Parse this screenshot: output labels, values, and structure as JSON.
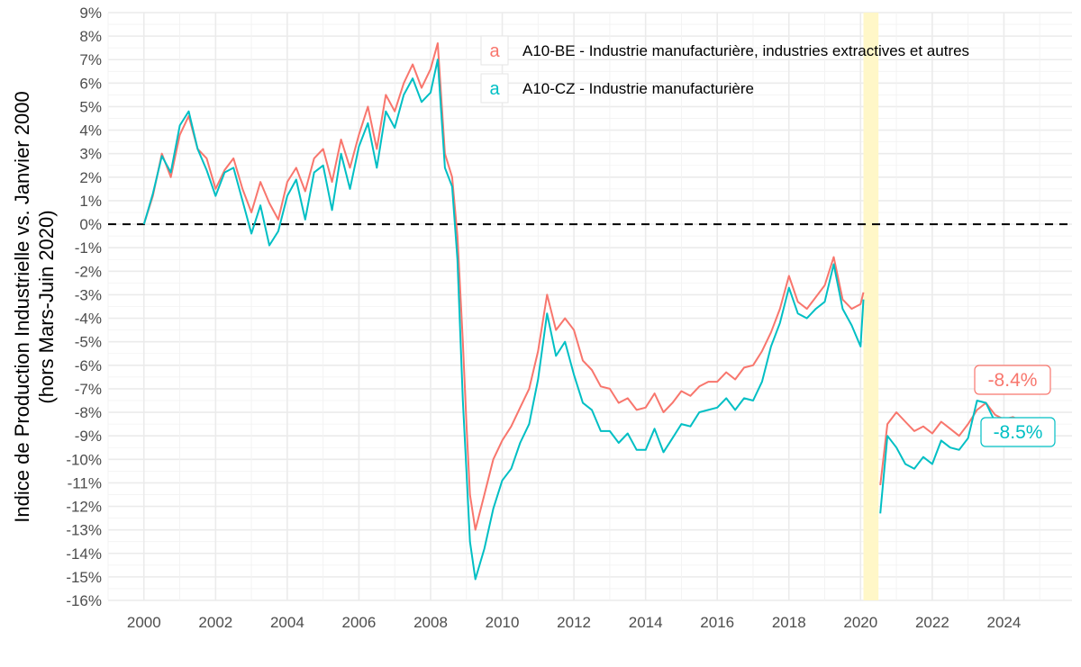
{
  "chart_data": {
    "type": "line",
    "title": "",
    "xlabel": "",
    "ylabel": "Indice de Production Industrielle vs. Janvier 2000",
    "ylabel_sub": "(hors Mars-Juin 2020)",
    "x_ticks": [
      "2000",
      "2002",
      "2004",
      "2006",
      "2008",
      "2010",
      "2012",
      "2014",
      "2016",
      "2018",
      "2020",
      "2022",
      "2024"
    ],
    "y_ticks": [
      "9%",
      "8%",
      "7%",
      "6%",
      "5%",
      "4%",
      "3%",
      "2%",
      "1%",
      "0%",
      "-1%",
      "-2%",
      "-3%",
      "-4%",
      "-5%",
      "-6%",
      "-7%",
      "-8%",
      "-9%",
      "-10%",
      "-11%",
      "-12%",
      "-13%",
      "-14%",
      "-15%",
      "-16%"
    ],
    "xlim": [
      1999.0,
      2025.9
    ],
    "ylim": [
      -16,
      9
    ],
    "reference_line": 0,
    "excluded_period": {
      "start": 2020.08,
      "end": 2020.5,
      "color": "#FFF7C8"
    },
    "legend_key_glyph": "a",
    "series": [
      {
        "name": "A10-BE - Industrie manufacturière, industries extractives et autres",
        "color": "#F8766D",
        "end_label": "-8.4%",
        "points": [
          [
            2000.0,
            0.0
          ],
          [
            2000.25,
            1.2
          ],
          [
            2000.5,
            3.0
          ],
          [
            2000.75,
            2.0
          ],
          [
            2001.0,
            3.8
          ],
          [
            2001.25,
            4.6
          ],
          [
            2001.5,
            3.2
          ],
          [
            2001.75,
            2.8
          ],
          [
            2002.0,
            1.5
          ],
          [
            2002.25,
            2.3
          ],
          [
            2002.5,
            2.8
          ],
          [
            2002.75,
            1.5
          ],
          [
            2003.0,
            0.5
          ],
          [
            2003.25,
            1.8
          ],
          [
            2003.5,
            0.9
          ],
          [
            2003.75,
            0.2
          ],
          [
            2004.0,
            1.8
          ],
          [
            2004.25,
            2.4
          ],
          [
            2004.5,
            1.4
          ],
          [
            2004.75,
            2.8
          ],
          [
            2005.0,
            3.2
          ],
          [
            2005.25,
            1.8
          ],
          [
            2005.5,
            3.6
          ],
          [
            2005.75,
            2.4
          ],
          [
            2006.0,
            3.8
          ],
          [
            2006.25,
            5.0
          ],
          [
            2006.5,
            3.2
          ],
          [
            2006.75,
            5.5
          ],
          [
            2007.0,
            4.8
          ],
          [
            2007.25,
            6.0
          ],
          [
            2007.5,
            6.8
          ],
          [
            2007.75,
            5.8
          ],
          [
            2008.0,
            6.6
          ],
          [
            2008.2,
            7.7
          ],
          [
            2008.4,
            3.0
          ],
          [
            2008.6,
            2.0
          ],
          [
            2008.75,
            -0.5
          ],
          [
            2008.9,
            -5.0
          ],
          [
            2009.0,
            -8.5
          ],
          [
            2009.1,
            -11.5
          ],
          [
            2009.25,
            -13.0
          ],
          [
            2009.5,
            -11.5
          ],
          [
            2009.75,
            -10.0
          ],
          [
            2010.0,
            -9.2
          ],
          [
            2010.25,
            -8.6
          ],
          [
            2010.5,
            -7.8
          ],
          [
            2010.75,
            -7.0
          ],
          [
            2011.0,
            -5.4
          ],
          [
            2011.25,
            -3.0
          ],
          [
            2011.5,
            -4.5
          ],
          [
            2011.75,
            -4.0
          ],
          [
            2012.0,
            -4.5
          ],
          [
            2012.25,
            -5.8
          ],
          [
            2012.5,
            -6.2
          ],
          [
            2012.75,
            -6.9
          ],
          [
            2013.0,
            -7.0
          ],
          [
            2013.25,
            -7.6
          ],
          [
            2013.5,
            -7.4
          ],
          [
            2013.75,
            -7.9
          ],
          [
            2014.0,
            -7.8
          ],
          [
            2014.25,
            -7.2
          ],
          [
            2014.5,
            -8.0
          ],
          [
            2014.75,
            -7.6
          ],
          [
            2015.0,
            -7.1
          ],
          [
            2015.25,
            -7.3
          ],
          [
            2015.5,
            -6.9
          ],
          [
            2015.75,
            -6.7
          ],
          [
            2016.0,
            -6.7
          ],
          [
            2016.25,
            -6.3
          ],
          [
            2016.5,
            -6.6
          ],
          [
            2016.75,
            -6.1
          ],
          [
            2017.0,
            -6.0
          ],
          [
            2017.25,
            -5.4
          ],
          [
            2017.5,
            -4.6
          ],
          [
            2017.75,
            -3.6
          ],
          [
            2018.0,
            -2.2
          ],
          [
            2018.25,
            -3.3
          ],
          [
            2018.5,
            -3.6
          ],
          [
            2018.75,
            -3.1
          ],
          [
            2019.0,
            -2.6
          ],
          [
            2019.25,
            -1.4
          ],
          [
            2019.5,
            -3.2
          ],
          [
            2019.75,
            -3.6
          ],
          [
            2020.0,
            -3.4
          ],
          [
            2020.08,
            -2.9
          ],
          [
            2020.55,
            -11.1
          ],
          [
            2020.75,
            -8.5
          ],
          [
            2021.0,
            -8.0
          ],
          [
            2021.25,
            -8.4
          ],
          [
            2021.5,
            -8.8
          ],
          [
            2021.75,
            -8.6
          ],
          [
            2022.0,
            -8.9
          ],
          [
            2022.25,
            -8.4
          ],
          [
            2022.5,
            -8.7
          ],
          [
            2022.75,
            -9.0
          ],
          [
            2023.0,
            -8.5
          ],
          [
            2023.25,
            -7.9
          ],
          [
            2023.5,
            -7.6
          ],
          [
            2023.75,
            -8.1
          ],
          [
            2024.0,
            -8.3
          ],
          [
            2024.25,
            -8.2
          ],
          [
            2024.5,
            -8.4
          ]
        ]
      },
      {
        "name": "A10-CZ - Industrie manufacturière",
        "color": "#00BFC4",
        "end_label": "-8.5%",
        "points": [
          [
            2000.0,
            0.0
          ],
          [
            2000.25,
            1.3
          ],
          [
            2000.5,
            2.9
          ],
          [
            2000.75,
            2.2
          ],
          [
            2001.0,
            4.2
          ],
          [
            2001.25,
            4.8
          ],
          [
            2001.5,
            3.2
          ],
          [
            2001.75,
            2.3
          ],
          [
            2002.0,
            1.2
          ],
          [
            2002.25,
            2.2
          ],
          [
            2002.5,
            2.4
          ],
          [
            2002.75,
            1.0
          ],
          [
            2003.0,
            -0.4
          ],
          [
            2003.25,
            0.8
          ],
          [
            2003.5,
            -0.9
          ],
          [
            2003.75,
            -0.3
          ],
          [
            2004.0,
            1.2
          ],
          [
            2004.25,
            1.9
          ],
          [
            2004.5,
            0.2
          ],
          [
            2004.75,
            2.2
          ],
          [
            2005.0,
            2.5
          ],
          [
            2005.25,
            0.6
          ],
          [
            2005.5,
            3.0
          ],
          [
            2005.75,
            1.5
          ],
          [
            2006.0,
            3.3
          ],
          [
            2006.25,
            4.3
          ],
          [
            2006.5,
            2.4
          ],
          [
            2006.75,
            4.8
          ],
          [
            2007.0,
            4.1
          ],
          [
            2007.25,
            5.5
          ],
          [
            2007.5,
            6.2
          ],
          [
            2007.75,
            5.2
          ],
          [
            2008.0,
            5.6
          ],
          [
            2008.2,
            7.0
          ],
          [
            2008.4,
            2.4
          ],
          [
            2008.6,
            1.6
          ],
          [
            2008.75,
            -1.5
          ],
          [
            2008.9,
            -7.5
          ],
          [
            2009.0,
            -10.5
          ],
          [
            2009.1,
            -13.5
          ],
          [
            2009.25,
            -15.1
          ],
          [
            2009.5,
            -13.8
          ],
          [
            2009.75,
            -12.1
          ],
          [
            2010.0,
            -10.9
          ],
          [
            2010.25,
            -10.4
          ],
          [
            2010.5,
            -9.3
          ],
          [
            2010.75,
            -8.5
          ],
          [
            2011.0,
            -6.6
          ],
          [
            2011.25,
            -3.8
          ],
          [
            2011.5,
            -5.6
          ],
          [
            2011.75,
            -5.0
          ],
          [
            2012.0,
            -6.4
          ],
          [
            2012.25,
            -7.6
          ],
          [
            2012.5,
            -7.9
          ],
          [
            2012.75,
            -8.8
          ],
          [
            2013.0,
            -8.8
          ],
          [
            2013.25,
            -9.3
          ],
          [
            2013.5,
            -8.9
          ],
          [
            2013.75,
            -9.6
          ],
          [
            2014.0,
            -9.6
          ],
          [
            2014.25,
            -8.7
          ],
          [
            2014.5,
            -9.7
          ],
          [
            2014.75,
            -9.1
          ],
          [
            2015.0,
            -8.5
          ],
          [
            2015.25,
            -8.6
          ],
          [
            2015.5,
            -8.0
          ],
          [
            2015.75,
            -7.9
          ],
          [
            2016.0,
            -7.8
          ],
          [
            2016.25,
            -7.4
          ],
          [
            2016.5,
            -7.9
          ],
          [
            2016.75,
            -7.4
          ],
          [
            2017.0,
            -7.5
          ],
          [
            2017.25,
            -6.7
          ],
          [
            2017.5,
            -5.2
          ],
          [
            2017.75,
            -4.2
          ],
          [
            2018.0,
            -2.7
          ],
          [
            2018.25,
            -3.8
          ],
          [
            2018.5,
            -4.0
          ],
          [
            2018.75,
            -3.6
          ],
          [
            2019.0,
            -3.3
          ],
          [
            2019.25,
            -1.7
          ],
          [
            2019.5,
            -3.6
          ],
          [
            2019.75,
            -4.3
          ],
          [
            2020.0,
            -5.2
          ],
          [
            2020.08,
            -3.2
          ],
          [
            2020.55,
            -12.3
          ],
          [
            2020.75,
            -9.0
          ],
          [
            2021.0,
            -9.5
          ],
          [
            2021.25,
            -10.2
          ],
          [
            2021.5,
            -10.4
          ],
          [
            2021.75,
            -9.9
          ],
          [
            2022.0,
            -10.2
          ],
          [
            2022.25,
            -9.2
          ],
          [
            2022.5,
            -9.5
          ],
          [
            2022.75,
            -9.6
          ],
          [
            2023.0,
            -9.1
          ],
          [
            2023.25,
            -7.5
          ],
          [
            2023.5,
            -7.6
          ],
          [
            2023.75,
            -8.4
          ],
          [
            2024.0,
            -8.7
          ],
          [
            2024.25,
            -8.5
          ],
          [
            2024.5,
            -8.5
          ]
        ]
      }
    ]
  }
}
